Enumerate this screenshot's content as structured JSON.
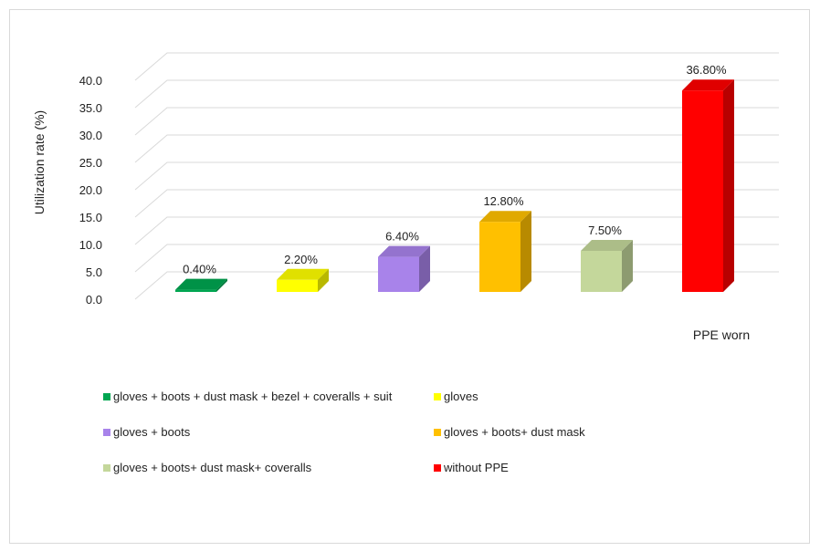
{
  "chart_data": {
    "type": "bar",
    "three_d": true,
    "categories": [
      "PPE worn"
    ],
    "xlabel": "PPE worn",
    "ylabel": "Utilization rate (%)",
    "ylim": [
      0,
      40
    ],
    "ytick_step": 5,
    "grid": true,
    "legend_position": "bottom",
    "series": [
      {
        "name": "gloves + boots + dust mask + bezel + coveralls + suit",
        "values": [
          0.4
        ],
        "label": "0.40%",
        "color": "#00a651"
      },
      {
        "name": "gloves",
        "values": [
          2.2
        ],
        "label": "2.20%",
        "color": "#ffff00"
      },
      {
        "name": "gloves + boots",
        "values": [
          6.4
        ],
        "label": "6.40%",
        "color": "#a883ea"
      },
      {
        "name": "gloves + boots+ dust mask",
        "values": [
          12.8
        ],
        "label": "12.80%",
        "color": "#ffc000"
      },
      {
        "name": "gloves + boots+ dust mask+ coveralls",
        "values": [
          7.5
        ],
        "label": "7.50%",
        "color": "#c4d79b"
      },
      {
        "name": "without PPE",
        "values": [
          36.8
        ],
        "label": "36.80%",
        "color": "#ff0000"
      }
    ],
    "yticks": [
      "0.0",
      "5.0",
      "10.0",
      "15.0",
      "20.0",
      "25.0",
      "30.0",
      "35.0",
      "40.0"
    ]
  }
}
